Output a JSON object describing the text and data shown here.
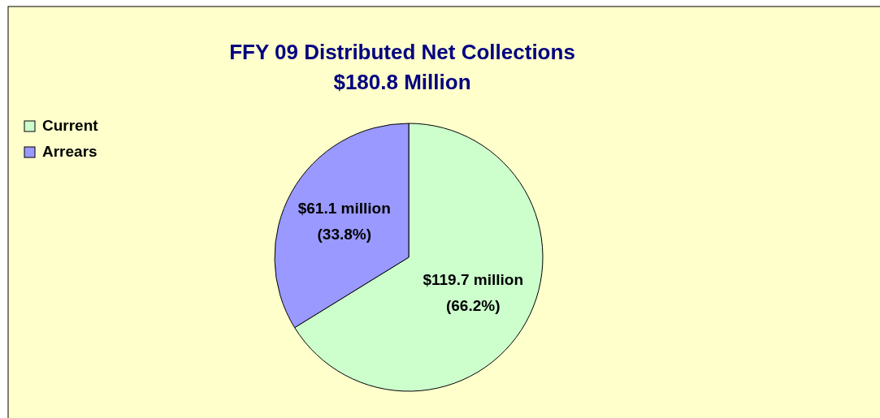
{
  "chart_data": {
    "type": "pie",
    "title": "FFY 09 Distributed Net Collections",
    "subtitle": "$180.8 Million",
    "categories": [
      "Current",
      "Arrears"
    ],
    "values": [
      66.2,
      33.8
    ],
    "colors": [
      "#ccffcc",
      "#9999ff"
    ],
    "value_labels": [
      "$119.7 million (66.2%)",
      "$61.1 million (33.8%)"
    ],
    "legend": "top left"
  }
}
